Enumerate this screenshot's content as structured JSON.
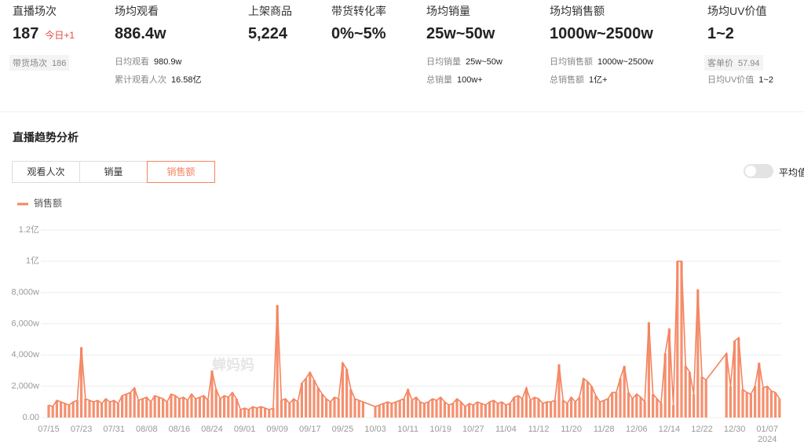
{
  "stats": [
    {
      "label": "直播场次",
      "value": "187",
      "badge": "今日+1",
      "details": [
        {
          "key": "带货场次",
          "value": "186",
          "boxed": true
        }
      ]
    },
    {
      "label": "场均观看",
      "value": "886.4w",
      "details": [
        {
          "key": "日均观看",
          "value": "980.9w"
        },
        {
          "key": "累计观看人次",
          "value": "16.58亿"
        }
      ]
    },
    {
      "label": "上架商品",
      "value": "5,224",
      "details": []
    },
    {
      "label": "带货转化率",
      "value": "0%~5%",
      "details": []
    },
    {
      "label": "场均销量",
      "value": "25w~50w",
      "details": [
        {
          "key": "日均销量",
          "value": "25w~50w"
        },
        {
          "key": "总销量",
          "value": "100w+"
        }
      ]
    },
    {
      "label": "场均销售额",
      "value": "1000w~2500w",
      "details": [
        {
          "key": "日均销售额",
          "value": "1000w~2500w"
        },
        {
          "key": "总销售额",
          "value": "1亿+"
        }
      ]
    },
    {
      "label": "场均UV价值",
      "value": "1~2",
      "details": [
        {
          "key": "客单价",
          "value": "57.94",
          "boxed": true
        },
        {
          "key": "日均UV价值",
          "value": "1~2"
        }
      ]
    }
  ],
  "section_title": "直播趋势分析",
  "tabs": [
    "观看人次",
    "销量",
    "销售额"
  ],
  "active_tab": 2,
  "toggle_label": "平均值",
  "watermark": "蝉妈妈",
  "chart_data": {
    "type": "bar-line",
    "series": [
      {
        "name": "销售额",
        "color": "#f4845f",
        "x": [
          "07/15",
          "07/16",
          "07/17",
          "07/18",
          "07/19",
          "07/20",
          "07/21",
          "07/22",
          "07/23",
          "07/24",
          "07/25",
          "07/26",
          "07/27",
          "07/28",
          "07/29",
          "07/30",
          "07/31",
          "08/01",
          "08/02",
          "08/03",
          "08/04",
          "08/05",
          "08/06",
          "08/07",
          "08/08",
          "08/09",
          "08/10",
          "08/11",
          "08/12",
          "08/13",
          "08/14",
          "08/15",
          "08/16",
          "08/17",
          "08/18",
          "08/19",
          "08/20",
          "08/21",
          "08/22",
          "08/23",
          "08/24",
          "08/25",
          "08/26",
          "08/27",
          "08/28",
          "08/29",
          "08/30",
          "08/31",
          "09/01",
          "09/02",
          "09/03",
          "09/04",
          "09/05",
          "09/06",
          "09/07",
          "09/08",
          "09/09",
          "09/10",
          "09/11",
          "09/12",
          "09/13",
          "09/14",
          "09/15",
          "09/16",
          "09/17",
          "09/18",
          "09/19",
          "09/20",
          "09/21",
          "09/22",
          "09/23",
          "09/24",
          "09/25",
          "09/26",
          "09/27",
          "09/28",
          "09/29",
          "09/30",
          "10/03",
          "10/04",
          "10/05",
          "10/06",
          "10/07",
          "10/08",
          "10/09",
          "10/10",
          "10/11",
          "10/12",
          "10/13",
          "10/14",
          "10/15",
          "10/16",
          "10/17",
          "10/18",
          "10/19",
          "10/20",
          "10/21",
          "10/22",
          "10/23",
          "10/24",
          "10/25",
          "10/26",
          "10/27",
          "10/28",
          "10/29",
          "10/30",
          "10/31",
          "11/01",
          "11/02",
          "11/03",
          "11/04",
          "11/05",
          "11/06",
          "11/07",
          "11/08",
          "11/09",
          "11/10",
          "11/11",
          "11/12",
          "11/13",
          "11/14",
          "11/15",
          "11/16",
          "11/17",
          "11/18",
          "11/19",
          "11/20",
          "11/21",
          "11/22",
          "11/23",
          "11/24",
          "11/25",
          "11/26",
          "11/27",
          "11/28",
          "11/29",
          "11/30",
          "12/01",
          "12/02",
          "12/03",
          "12/04",
          "12/05",
          "12/06",
          "12/07",
          "12/08",
          "12/09",
          "12/10",
          "12/11",
          "12/12",
          "12/13",
          "12/14",
          "12/15",
          "12/16",
          "12/17",
          "12/18",
          "12/19",
          "12/20",
          "12/21",
          "12/22",
          "12/23",
          "12/28",
          "12/29",
          "12/30",
          "12/31",
          "01/01",
          "01/02",
          "01/03",
          "01/04",
          "01/05",
          "01/06",
          "01/07",
          "01/08",
          "01/09",
          "01/10"
        ],
        "values": [
          800,
          700,
          1100,
          1000,
          900,
          800,
          1000,
          1100,
          4500,
          1200,
          1100,
          1000,
          1100,
          900,
          1200,
          1000,
          1100,
          900,
          1400,
          1500,
          1600,
          1900,
          1100,
          1200,
          1300,
          1000,
          1400,
          1300,
          1200,
          1000,
          1500,
          1400,
          1200,
          1300,
          1100,
          1500,
          1200,
          1300,
          1400,
          1100,
          3000,
          1800,
          1200,
          1400,
          1300,
          1600,
          1200,
          500,
          600,
          500,
          700,
          600,
          700,
          600,
          500,
          600,
          7200,
          1100,
          1200,
          900,
          1200,
          1000,
          2200,
          2500,
          2900,
          2400,
          1900,
          1500,
          1200,
          1000,
          1300,
          1200,
          3500,
          3100,
          1800,
          1200,
          1100,
          1000,
          700,
          800,
          900,
          1000,
          900,
          1000,
          1100,
          1200,
          1800,
          1100,
          1300,
          1000,
          900,
          1000,
          1200,
          1100,
          1300,
          1000,
          800,
          900,
          1200,
          1000,
          700,
          900,
          800,
          1000,
          900,
          800,
          1000,
          1100,
          900,
          1000,
          800,
          900,
          1300,
          1400,
          1200,
          1900,
          1100,
          1300,
          1200,
          900,
          1000,
          1000,
          1100,
          3400,
          1100,
          900,
          1300,
          1000,
          1300,
          2500,
          2300,
          2000,
          1400,
          1000,
          1100,
          1200,
          1600,
          1600,
          2500,
          3300,
          1600,
          1200,
          1500,
          1300,
          1000,
          6100,
          1500,
          1200,
          900,
          4100,
          5700,
          800,
          10000,
          10000,
          3300,
          2900,
          1500,
          8200,
          2600,
          2400,
          4100,
          2000,
          4900,
          5100,
          1800,
          1600,
          1500,
          2000,
          3500,
          1900,
          2000,
          1700,
          1600,
          1200
        ]
      }
    ],
    "ylim": [
      0,
      12000
    ],
    "yticks": [
      {
        "value": 0,
        "label": "0.00"
      },
      {
        "value": 2000,
        "label": "2,000w"
      },
      {
        "value": 4000,
        "label": "4,000w"
      },
      {
        "value": 6000,
        "label": "6,000w"
      },
      {
        "value": 8000,
        "label": "8,000w"
      },
      {
        "value": 10000,
        "label": "1亿"
      },
      {
        "value": 12000,
        "label": "1.2亿"
      }
    ],
    "xticks": [
      "07/15",
      "07/23",
      "07/31",
      "08/08",
      "08/16",
      "08/24",
      "09/01",
      "09/09",
      "09/17",
      "09/25",
      "10/03",
      "10/11",
      "10/19",
      "10/27",
      "11/04",
      "11/12",
      "11/20",
      "11/28",
      "12/06",
      "12/14",
      "12/22",
      "12/30",
      "01/07"
    ],
    "x_year_label": "2024",
    "grid": true,
    "legend": "top-left"
  }
}
